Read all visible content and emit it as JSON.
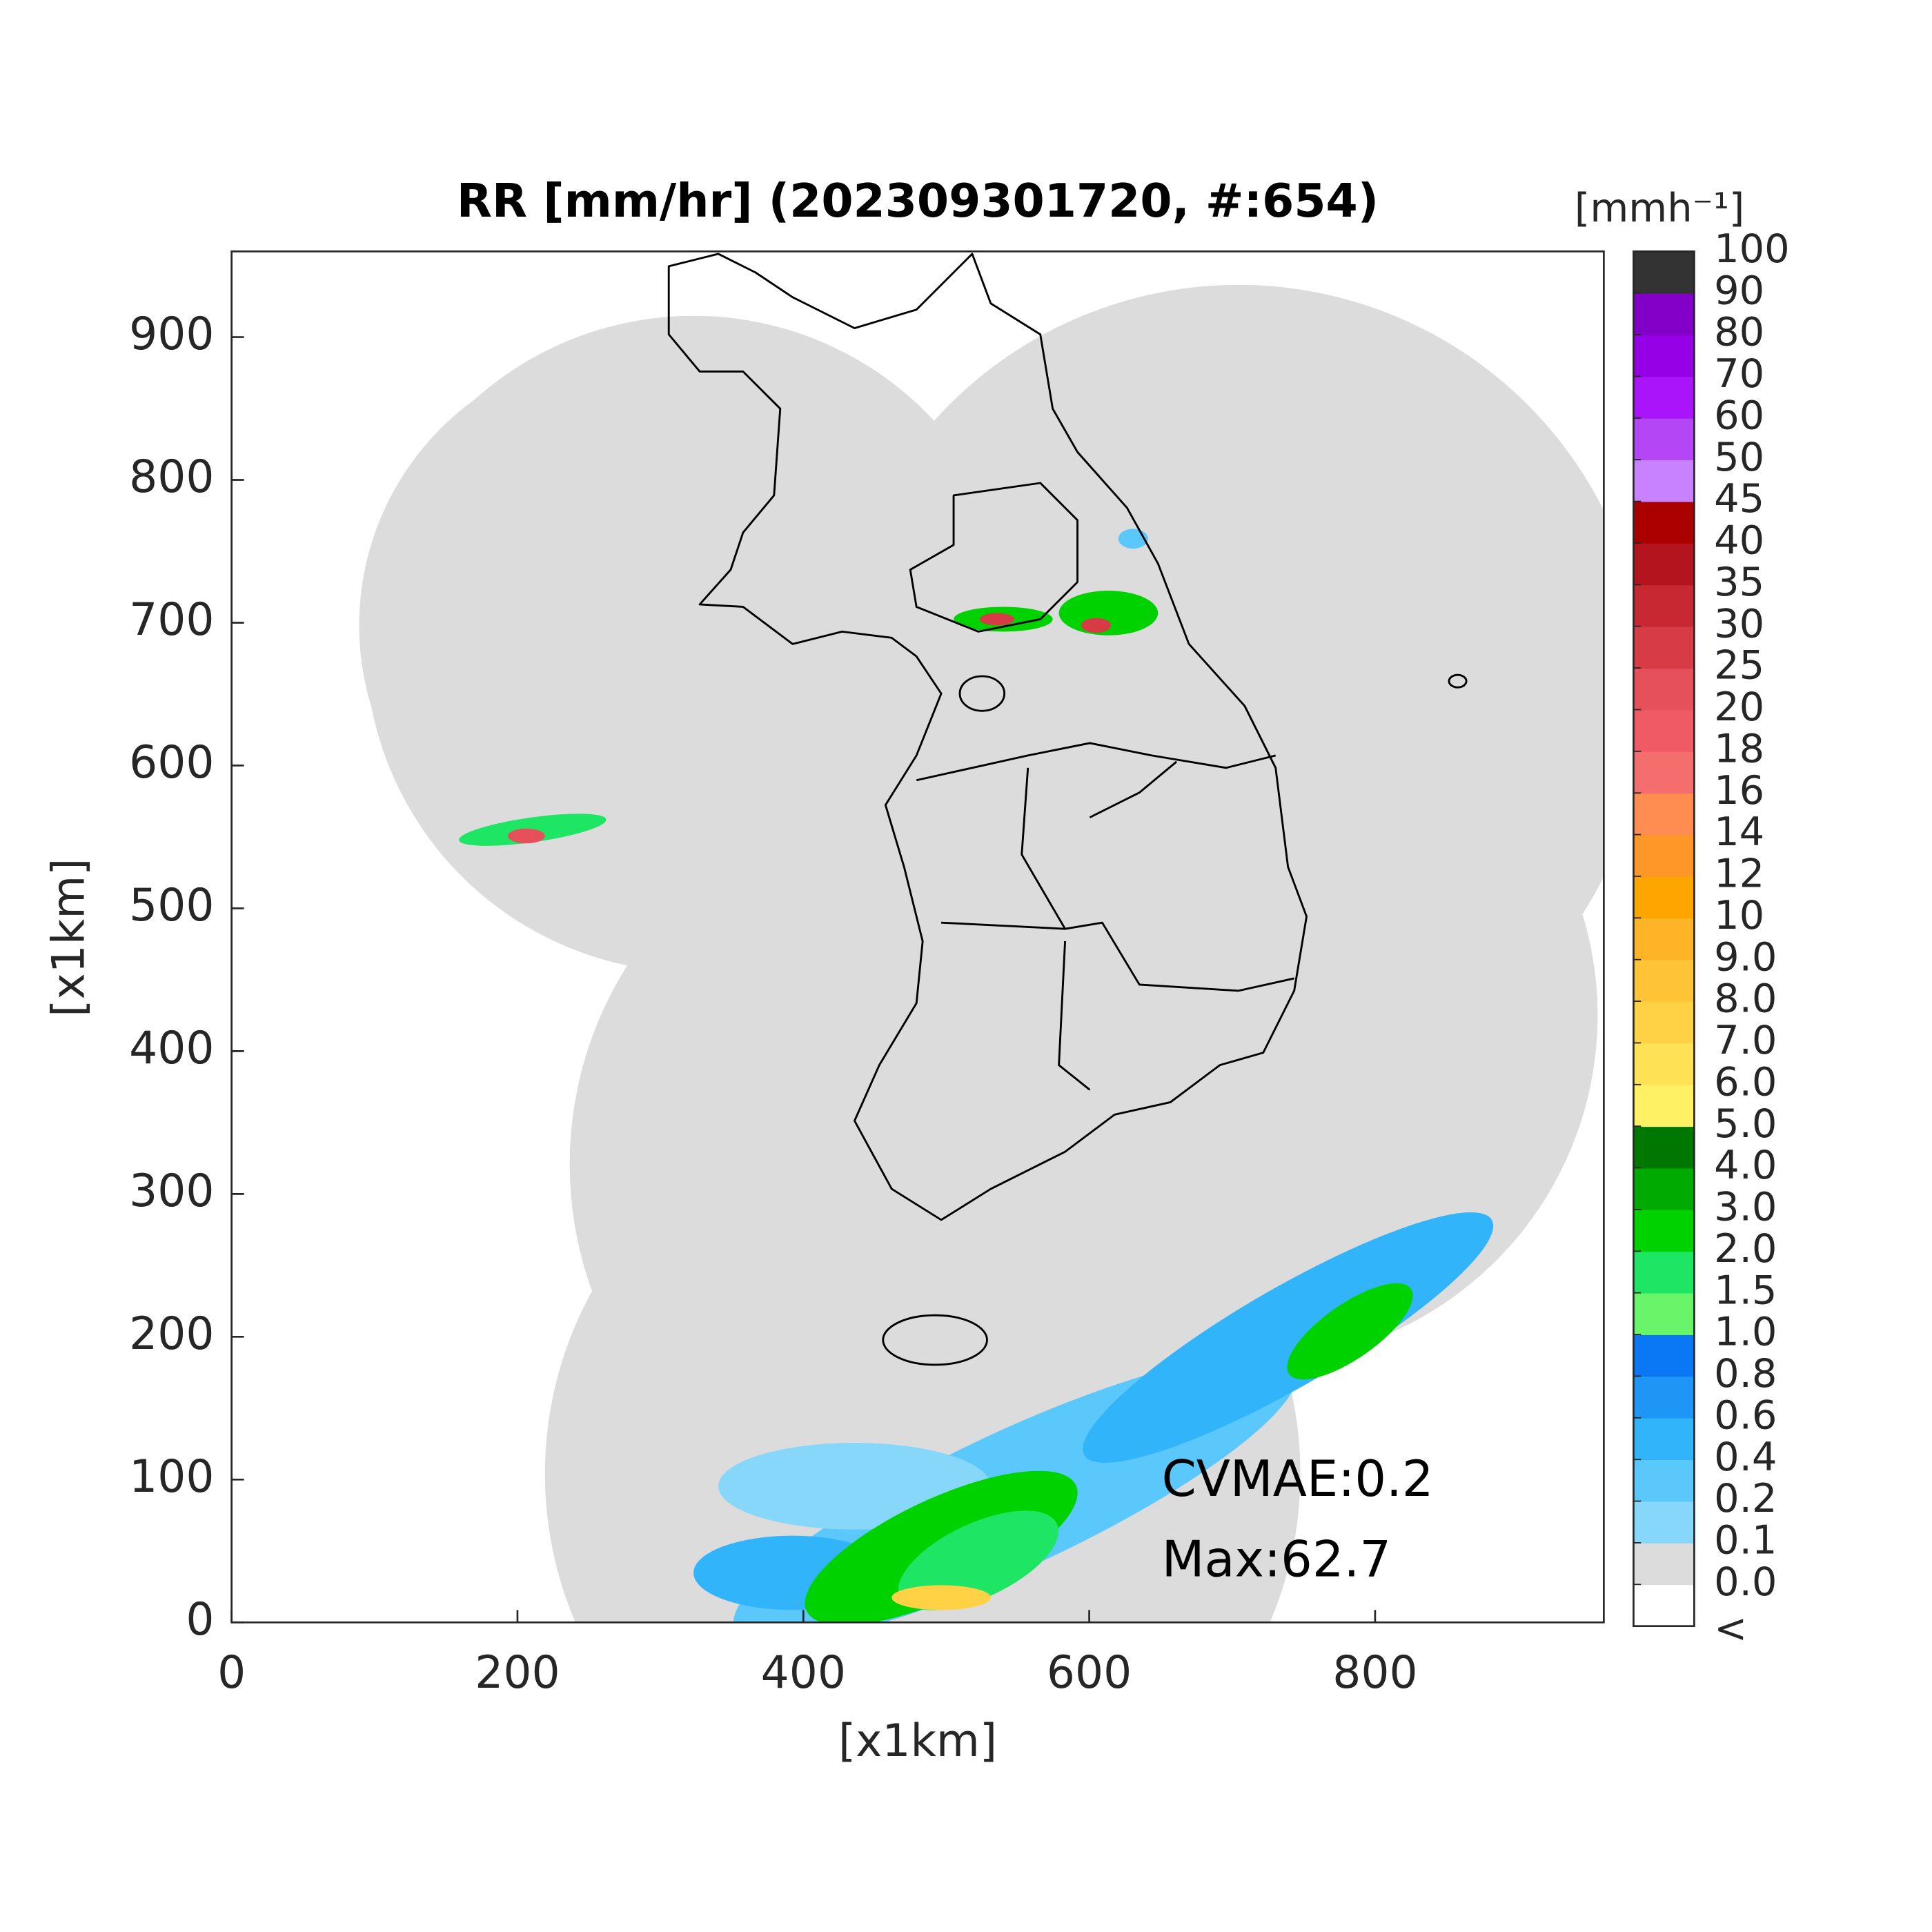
{
  "chart_data": {
    "type": "radar_map",
    "title": "RR [mm/hr] (202309301720, #:654)",
    "xlabel": "[x1km]",
    "ylabel": "[x1km]",
    "xlim": [
      0,
      960
    ],
    "ylim": [
      0,
      960
    ],
    "xticks": [
      0,
      200,
      400,
      600,
      800
    ],
    "yticks": [
      0,
      100,
      200,
      300,
      400,
      500,
      600,
      700,
      800,
      900
    ],
    "annotations": [
      "CVMAE:0.2",
      "Max:62.7"
    ],
    "colorbar": {
      "unit": "[mmh⁻¹]",
      "under_label": "<",
      "under_color": "#ffffff",
      "ticks": [
        {
          "value": 0,
          "label": "0.0"
        },
        0.1,
        0.2,
        0.4,
        0.6,
        0.8,
        {
          "value": 1,
          "label": "1.0"
        },
        1.5,
        {
          "value": 2,
          "label": "2.0"
        },
        {
          "value": 3,
          "label": "3.0"
        },
        {
          "value": 4,
          "label": "4.0"
        },
        {
          "value": 5,
          "label": "5.0"
        },
        {
          "value": 6,
          "label": "6.0"
        },
        {
          "value": 7,
          "label": "7.0"
        },
        {
          "value": 8,
          "label": "8.0"
        },
        {
          "value": 9,
          "label": "9.0"
        },
        10,
        12,
        14,
        16,
        18,
        20,
        25,
        30,
        35,
        40,
        45,
        50,
        60,
        70,
        80,
        90,
        100
      ],
      "colors": [
        "#dcdcdc",
        "#87d7fa",
        "#5ac8fa",
        "#32b4fa",
        "#1e96f5",
        "#0a78f5",
        "#69f569",
        "#1ee664",
        "#00d200",
        "#00aa00",
        "#007800",
        "#fff064",
        "#ffe155",
        "#ffd246",
        "#ffc337",
        "#ffb428",
        "#ffa500",
        "#ff9628",
        "#ff8c50",
        "#f56e6e",
        "#f05a64",
        "#e6505a",
        "#d73c46",
        "#c82832",
        "#b4141e",
        "#aa0000",
        "#c882ff",
        "#b446f5",
        "#aa14fa",
        "#9600e6",
        "#8200c8",
        "#333333"
      ]
    }
  }
}
